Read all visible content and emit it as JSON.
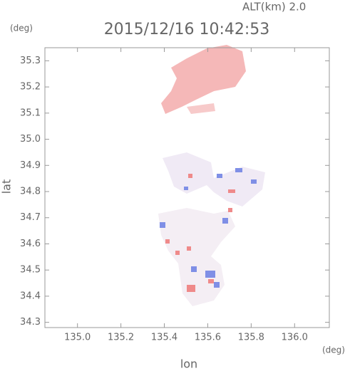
{
  "chart_data": {
    "type": "map",
    "title": "2015/12/16 10:42:53",
    "subtitle": "ALT(km) 2.0",
    "x_label": "lon",
    "y_label": "lat",
    "x_unit": "(deg)",
    "y_unit": "(deg)",
    "xlim": [
      134.85,
      136.16
    ],
    "ylim": [
      34.28,
      35.35
    ],
    "xticks": [
      {
        "value": 135.0,
        "label": "135.0"
      },
      135.2,
      135.4,
      135.6,
      135.8,
      {
        "value": 136.0,
        "label": "136.0"
      }
    ],
    "yticks": [
      34.3,
      34.4,
      34.5,
      34.6,
      34.7,
      34.8,
      34.9,
      {
        "value": 35.0,
        "label": "35.0"
      },
      35.1,
      35.2,
      35.3
    ]
  }
}
